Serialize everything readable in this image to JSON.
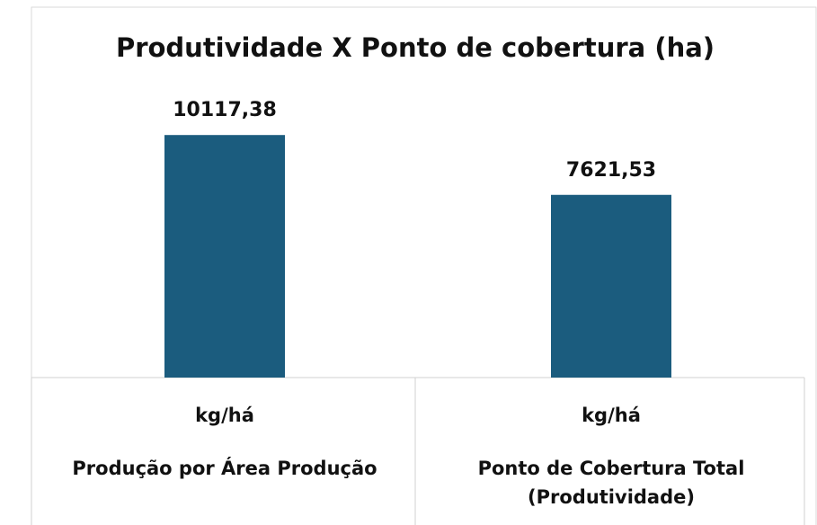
{
  "chart_data": {
    "type": "bar",
    "title": "Produtividade X Ponto de cobertura (ha)",
    "categories": [
      [
        "kg/há",
        "Produção por Área Produção"
      ],
      [
        "kg/há",
        "Ponto de Cobertura Total (Produtividade)"
      ]
    ],
    "values": [
      10117.38,
      7621.53
    ],
    "value_labels": [
      "10117,38",
      "7621,53"
    ],
    "color": "#1b5c7e",
    "ylim": [
      0,
      12000
    ]
  }
}
